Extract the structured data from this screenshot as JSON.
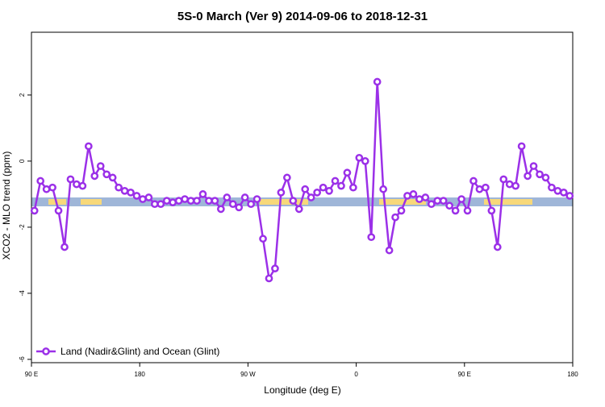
{
  "chart_data": {
    "type": "line",
    "title": "5S-0 March (Ver 9)   2014-09-06 to 2018-12-31",
    "x_label": "Longitude (deg E)",
    "y_label": "XCO2 - MLO trend (ppm)",
    "x": [
      92.5,
      97.5,
      102.5,
      107.5,
      112.5,
      117.5,
      122.5,
      127.5,
      132.5,
      137.5,
      142.5,
      147.5,
      152.5,
      157.5,
      162.5,
      167.5,
      172.5,
      177.5,
      182.5,
      187.5,
      192.5,
      197.5,
      202.5,
      207.5,
      212.5,
      217.5,
      222.5,
      227.5,
      232.5,
      237.5,
      242.5,
      247.5,
      252.5,
      257.5,
      262.5,
      267.5,
      272.5,
      277.5,
      282.5,
      287.5,
      292.5,
      297.5,
      302.5,
      307.5,
      312.5,
      317.5,
      322.5,
      327.5,
      332.5,
      337.5,
      342.5,
      347.5,
      352.5,
      357.5,
      362.5,
      367.5,
      372.5,
      377.5,
      382.5,
      387.5,
      392.5,
      397.5,
      402.5,
      407.5,
      412.5,
      417.5,
      422.5,
      427.5,
      432.5,
      437.5,
      442.5,
      447.5,
      452.5,
      457.5,
      462.5,
      467.5,
      472.5,
      477.5,
      482.5,
      487.5,
      492.5,
      497.5,
      502.5,
      507.5,
      512.5,
      517.5,
      522.5,
      527.5,
      532.5,
      537.5
    ],
    "series": [
      {
        "name": "Land (Nadir&Glint) and Ocean (Glint)",
        "color": "#9b30e8",
        "values": [
          -1.5,
          -0.6,
          -0.85,
          -0.8,
          -1.5,
          -2.6,
          -0.55,
          -0.7,
          -0.75,
          0.45,
          -0.45,
          -0.15,
          -0.4,
          -0.5,
          -0.8,
          -0.9,
          -0.95,
          -1.05,
          -1.15,
          -1.1,
          -1.3,
          -1.3,
          -1.2,
          -1.25,
          -1.2,
          -1.15,
          -1.2,
          -1.2,
          -1.0,
          -1.2,
          -1.2,
          -1.45,
          -1.1,
          -1.3,
          -1.4,
          -1.1,
          -1.3,
          -1.15,
          -2.35,
          -3.55,
          -3.25,
          -0.95,
          -0.5,
          -1.2,
          -1.45,
          -0.85,
          -1.1,
          -0.95,
          -0.8,
          -0.9,
          -0.6,
          -0.75,
          -0.35,
          -0.8,
          0.1,
          0.0,
          -2.3,
          2.4,
          -0.85,
          -2.7,
          -1.7,
          -1.5,
          -1.05,
          -1.0,
          -1.15,
          -1.1,
          -1.3,
          -1.2,
          -1.2,
          -1.35,
          -1.5,
          -1.15,
          -1.5,
          -0.6,
          -0.85,
          -0.8,
          -1.5,
          -2.6,
          -0.55,
          -0.7,
          -0.75,
          0.45,
          -0.45,
          -0.15,
          -0.4,
          -0.5,
          -0.8,
          -0.9,
          -0.95,
          -1.05
        ]
      }
    ],
    "xlim": [
      90,
      540
    ],
    "xticks": [
      {
        "value": 90,
        "label": "90 E"
      },
      {
        "value": 180,
        "label": "180"
      },
      {
        "value": 270,
        "label": "90 W"
      },
      {
        "value": 360,
        "label": "0"
      },
      {
        "value": 450,
        "label": "90 E"
      },
      {
        "value": 540,
        "label": "180"
      }
    ],
    "ylim": [
      -6.1,
      3.9
    ],
    "yticks": [
      2,
      0,
      -2,
      -4,
      -6
    ],
    "legend": "bottom-left"
  }
}
